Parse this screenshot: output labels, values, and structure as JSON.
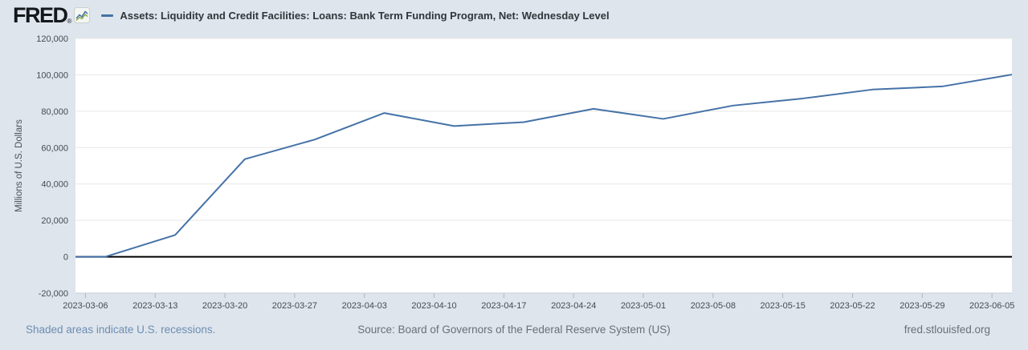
{
  "header": {
    "logo_text": "FRED",
    "logo_reg": "®",
    "series_title": "Assets: Liquidity and Credit Facilities: Loans: Bank Term Funding Program, Net: Wednesday Level"
  },
  "chart_data": {
    "type": "line",
    "title": "Assets: Liquidity and Credit Facilities: Loans: Bank Term Funding Program, Net: Wednesday Level",
    "ylabel": "Millions of U.S. Dollars",
    "xlabel": "",
    "xlim": [
      "2023-03-05",
      "2023-06-07"
    ],
    "ylim": [
      -20000,
      120000
    ],
    "y_ticks": [
      -20000,
      0,
      20000,
      40000,
      60000,
      80000,
      100000,
      120000
    ],
    "x_tick_labels": [
      "2023-03-06",
      "2023-03-13",
      "2023-03-20",
      "2023-03-27",
      "2023-04-03",
      "2023-04-10",
      "2023-04-17",
      "2023-04-24",
      "2023-05-01",
      "2023-05-08",
      "2023-05-15",
      "2023-05-22",
      "2023-05-29",
      "2023-06-05"
    ],
    "grid": "horizontal",
    "legend_position": "top-left",
    "zero_line": true,
    "series": [
      {
        "name": "Assets: Liquidity and Credit Facilities: Loans: Bank Term Funding Program, Net: Wednesday Level",
        "color": "#4572a7",
        "x": [
          "2023-03-01",
          "2023-03-08",
          "2023-03-15",
          "2023-03-22",
          "2023-03-29",
          "2023-04-05",
          "2023-04-12",
          "2023-04-19",
          "2023-04-26",
          "2023-05-03",
          "2023-05-10",
          "2023-05-17",
          "2023-05-24",
          "2023-05-31",
          "2023-06-07"
        ],
        "values": [
          0,
          0,
          11943,
          53669,
          64403,
          79021,
          71837,
          73982,
          81327,
          75778,
          83101,
          87006,
          91907,
          93615,
          100161
        ]
      }
    ]
  },
  "footer": {
    "recessions_note": "Shaded areas indicate U.S. recessions.",
    "source": "Source: Board of Governors of the Federal Reserve System (US)",
    "site": "fred.stlouisfed.org"
  },
  "colors": {
    "background": "#dee5ec",
    "line": "#4572a7",
    "link": "#6d8db3"
  }
}
